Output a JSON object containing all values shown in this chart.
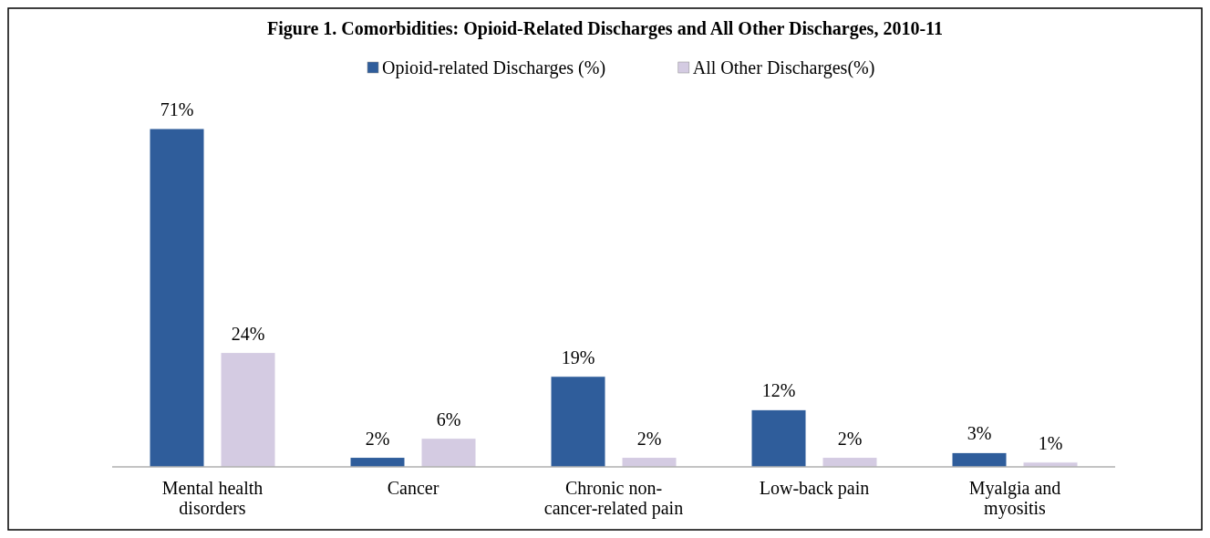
{
  "chart_data": {
    "type": "bar",
    "title": "Figure 1.  Comorbidities: Opioid-Related Discharges and All Other Discharges, 2010-11",
    "categories": [
      "Mental health disorders",
      "Cancer",
      "Chronic non-cancer-related pain",
      "Low-back pain",
      "Myalgia and myositis"
    ],
    "series": [
      {
        "name": "Opioid-related Discharges (%)",
        "color": "#2f5d9b",
        "values": [
          71,
          2,
          19,
          12,
          3
        ],
        "value_labels": [
          "71%",
          "2%",
          "19%",
          "12%",
          "3%"
        ]
      },
      {
        "name": "All Other Discharges(%)",
        "color": "#d4cbe2",
        "values": [
          24,
          6,
          2,
          2,
          1
        ],
        "value_labels": [
          "24%",
          "6%",
          "2%",
          "2%",
          "1%"
        ]
      }
    ],
    "legend": "top"
  }
}
